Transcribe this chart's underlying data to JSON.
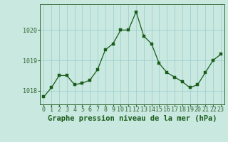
{
  "x": [
    0,
    1,
    2,
    3,
    4,
    5,
    6,
    7,
    8,
    9,
    10,
    11,
    12,
    13,
    14,
    15,
    16,
    17,
    18,
    19,
    20,
    21,
    22,
    23
  ],
  "y": [
    1017.8,
    1018.1,
    1018.5,
    1018.5,
    1018.2,
    1018.25,
    1018.35,
    1018.7,
    1019.35,
    1019.55,
    1020.0,
    1020.0,
    1020.6,
    1019.8,
    1019.55,
    1018.9,
    1018.6,
    1018.45,
    1018.3,
    1018.1,
    1018.2,
    1018.6,
    1019.0,
    1019.2
  ],
  "line_color": "#1a5c1a",
  "marker_color": "#1a5c1a",
  "bg_color": "#c8e8e0",
  "grid_color": "#99cccc",
  "axis_color": "#336633",
  "xlabel": "Graphe pression niveau de la mer (hPa)",
  "xlabel_color": "#1a5c1a",
  "xlabel_fontsize": 7.5,
  "ylim": [
    1017.55,
    1020.85
  ],
  "yticks": [
    1018,
    1019,
    1020
  ],
  "xticks": [
    0,
    1,
    2,
    3,
    4,
    5,
    6,
    7,
    8,
    9,
    10,
    11,
    12,
    13,
    14,
    15,
    16,
    17,
    18,
    19,
    20,
    21,
    22,
    23
  ],
  "tick_fontsize": 6,
  "marker_size": 2.5,
  "line_width": 0.9
}
